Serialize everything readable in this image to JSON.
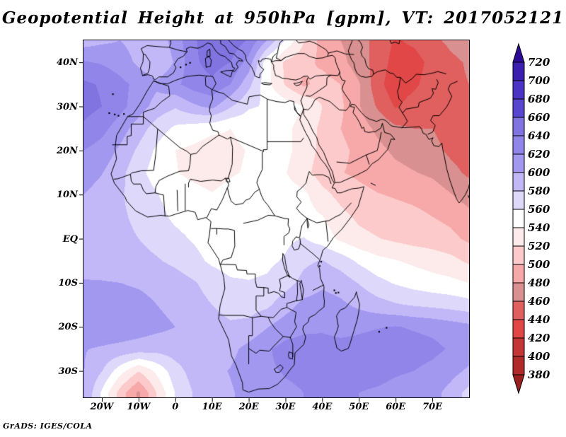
{
  "title": "Geopotential Height at 950hPa [gpm], VT: 2017052121",
  "attribution": "GrADS: IGES/COLA",
  "axes": {
    "x_tick_labels": [
      "20W",
      "10W",
      "0",
      "10E",
      "20E",
      "30E",
      "40E",
      "50E",
      "60E",
      "70E"
    ],
    "x_tick_lons": [
      -20,
      -10,
      0,
      10,
      20,
      30,
      40,
      50,
      60,
      70
    ],
    "y_tick_labels": [
      "40N",
      "30N",
      "20N",
      "10N",
      "EQ",
      "10S",
      "20S",
      "30S"
    ],
    "y_tick_lats": [
      40,
      30,
      20,
      10,
      0,
      -10,
      -20,
      -30
    ]
  },
  "colorbar": {
    "tick_labels": [
      "720",
      "700",
      "680",
      "660",
      "640",
      "620",
      "600",
      "580",
      "560",
      "540",
      "520",
      "500",
      "480",
      "460",
      "440",
      "420",
      "400",
      "380"
    ],
    "segment_colors_top_to_bottom": [
      "#3c1fae",
      "#4b34c4",
      "#5946cf",
      "#8173e0",
      "#9285e9",
      "#a398f0",
      "#c2b8f7",
      "#ded8fb",
      "#ffffff",
      "#fdeaea",
      "#fccaca",
      "#f7a8a8",
      "#d89090",
      "#e05f5f",
      "#e14747",
      "#c43636",
      "#b02a2a"
    ],
    "arrow_top_color": "#2d0a96",
    "arrow_bottom_color": "#9a2020"
  },
  "chart_data": {
    "type": "heatmap",
    "style": "filled-contours",
    "title": "Geopotential Height at 950hPa [gpm], VT: 2017052121",
    "variable": "Geopotential Height",
    "level": "950hPa",
    "units": "gpm",
    "valid_time": "2017052121",
    "contour_interval": 20,
    "min_level": 380,
    "max_level": 720,
    "lon_domain": [
      -25,
      80
    ],
    "lat_domain": [
      -36,
      45
    ],
    "legend_position": "right",
    "grid_lons": [
      -25,
      -20,
      -15,
      -10,
      -5,
      0,
      5,
      10,
      15,
      20,
      25,
      30,
      35,
      40,
      45,
      50,
      55,
      60,
      65,
      70,
      75,
      80
    ],
    "grid_lats": [
      45,
      40,
      35,
      30,
      25,
      20,
      15,
      10,
      5,
      0,
      -5,
      -10,
      -15,
      -20,
      -25,
      -30,
      -35
    ],
    "values": [
      [
        590,
        596,
        600,
        592,
        585,
        610,
        636,
        658,
        654,
        638,
        600,
        558,
        522,
        492,
        480,
        470,
        452,
        438,
        444,
        456,
        464,
        470
      ],
      [
        622,
        618,
        610,
        596,
        582,
        602,
        636,
        648,
        640,
        612,
        546,
        516,
        506,
        496,
        486,
        470,
        452,
        432,
        432,
        446,
        456,
        462
      ],
      [
        644,
        638,
        626,
        614,
        604,
        616,
        630,
        636,
        620,
        586,
        546,
        518,
        496,
        508,
        500,
        482,
        448,
        426,
        436,
        450,
        456,
        460
      ],
      [
        648,
        640,
        626,
        610,
        592,
        582,
        596,
        606,
        582,
        562,
        558,
        552,
        540,
        520,
        504,
        482,
        458,
        438,
        450,
        456,
        450,
        446
      ],
      [
        636,
        626,
        610,
        590,
        570,
        556,
        550,
        544,
        540,
        546,
        552,
        546,
        530,
        516,
        500,
        490,
        476,
        464,
        460,
        460,
        452,
        446
      ],
      [
        620,
        612,
        596,
        576,
        556,
        540,
        536,
        531,
        536,
        541,
        546,
        546,
        530,
        515,
        505,
        495,
        486,
        476,
        470,
        466,
        456,
        450
      ],
      [
        610,
        601,
        586,
        566,
        551,
        541,
        535,
        532,
        538,
        542,
        546,
        541,
        526,
        511,
        501,
        496,
        491,
        486,
        481,
        476,
        466,
        456
      ],
      [
        600,
        592,
        582,
        572,
        561,
        551,
        546,
        541,
        546,
        549,
        551,
        549,
        545,
        526,
        514,
        506,
        501,
        498,
        495,
        491,
        481,
        471
      ],
      [
        595,
        590,
        583,
        576,
        566,
        556,
        551,
        546,
        549,
        551,
        553,
        551,
        548,
        541,
        526,
        516,
        511,
        508,
        505,
        500,
        495,
        486
      ],
      [
        590,
        588,
        585,
        580,
        572,
        565,
        558,
        551,
        549,
        551,
        553,
        556,
        561,
        551,
        536,
        526,
        521,
        516,
        512,
        510,
        505,
        496
      ],
      [
        595,
        592,
        590,
        588,
        582,
        575,
        566,
        556,
        551,
        553,
        556,
        562,
        576,
        581,
        571,
        556,
        546,
        541,
        536,
        531,
        526,
        516
      ],
      [
        601,
        601,
        600,
        598,
        595,
        590,
        582,
        572,
        563,
        561,
        563,
        572,
        586,
        596,
        591,
        579,
        566,
        558,
        552,
        548,
        545,
        540
      ],
      [
        608,
        608,
        607,
        605,
        600,
        595,
        588,
        580,
        573,
        571,
        576,
        591,
        606,
        609,
        604,
        596,
        588,
        582,
        578,
        575,
        572,
        568
      ],
      [
        613,
        613,
        612,
        610,
        605,
        600,
        595,
        588,
        583,
        586,
        599,
        611,
        616,
        616,
        612,
        616,
        619,
        621,
        618,
        615,
        610,
        605
      ],
      [
        601,
        598,
        595,
        591,
        588,
        590,
        592,
        590,
        595,
        606,
        618,
        626,
        628,
        630,
        628,
        628,
        630,
        630,
        628,
        625,
        618,
        612
      ],
      [
        601,
        581,
        548,
        521,
        545,
        572,
        588,
        595,
        601,
        609,
        618,
        621,
        622,
        625,
        625,
        625,
        625,
        622,
        620,
        615,
        608,
        596
      ],
      [
        602,
        556,
        511,
        476,
        521,
        561,
        581,
        591,
        598,
        606,
        612,
        618,
        620,
        622,
        622,
        620,
        618,
        615,
        612,
        608,
        592,
        572
      ]
    ],
    "colors_low_to_high": [
      "#9a2020",
      "#b02a2a",
      "#c43636",
      "#e14747",
      "#e05f5f",
      "#d89090",
      "#f7a8a8",
      "#fccaca",
      "#fdeaea",
      "#ffffff",
      "#ded8fb",
      "#c2b8f7",
      "#a398f0",
      "#9285e9",
      "#8173e0",
      "#5946cf",
      "#4b34c4",
      "#3c1fae",
      "#2d0a96"
    ]
  }
}
